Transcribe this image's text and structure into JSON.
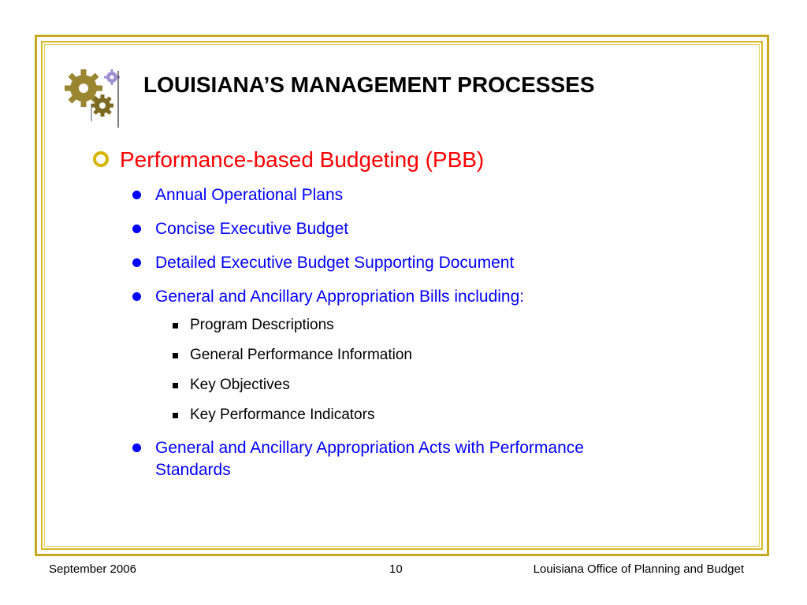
{
  "slide": {
    "title": "LOUISIANA’S MANAGEMENT PROCESSES",
    "logo_icon": "gears-icon",
    "accent_color": "#c8a820",
    "main_point": "Performance-based Budgeting (PBB)",
    "items": [
      "Annual Operational Plans",
      "Concise Executive Budget",
      "Detailed Executive Budget Supporting Document",
      "General and Ancillary Appropriation Bills including:"
    ],
    "subitems": [
      "Program Descriptions",
      "General Performance Information",
      "Key Objectives",
      "Key Performance Indicators"
    ],
    "last_item": "General and Ancillary Appropriation Acts with Performance Standards"
  },
  "footer": {
    "date": "September 2006",
    "page": "10",
    "org": "Louisiana Office of Planning and Budget"
  }
}
